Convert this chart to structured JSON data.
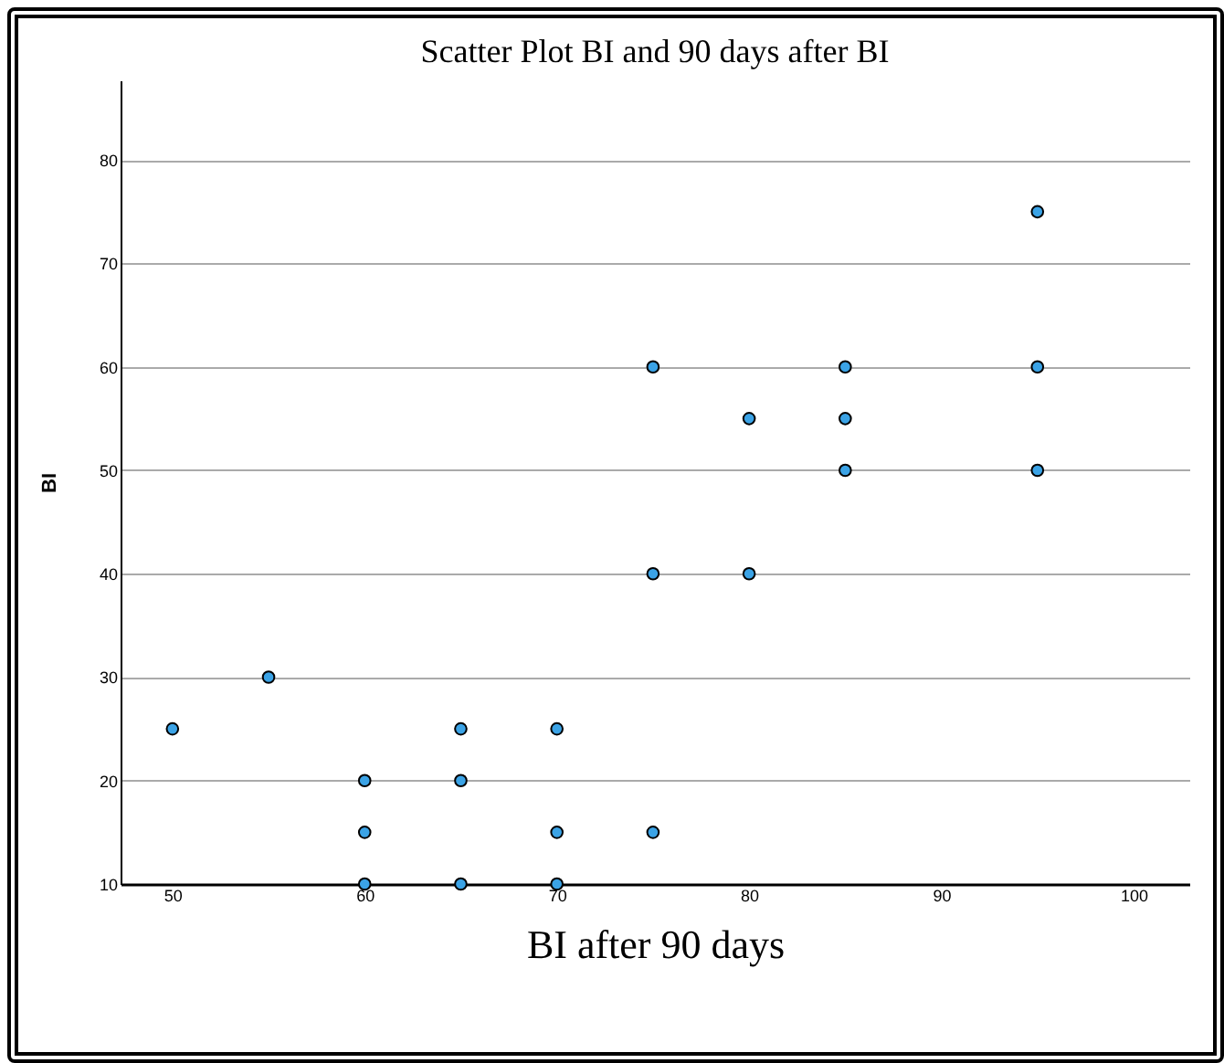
{
  "chart_data": {
    "type": "scatter",
    "title": "Scatter Plot BI and 90 days after BI",
    "xlabel": "BI after 90 days",
    "ylabel": "BI",
    "x": [
      50,
      55,
      60,
      60,
      60,
      65,
      65,
      65,
      70,
      70,
      70,
      75,
      75,
      75,
      80,
      80,
      85,
      85,
      85,
      95,
      95,
      95
    ],
    "values": [
      25,
      30,
      20,
      15,
      10,
      25,
      20,
      10,
      25,
      15,
      10,
      60,
      40,
      15,
      55,
      40,
      60,
      55,
      50,
      75,
      60,
      50
    ],
    "color": "#3ba3e6",
    "marker": "circle",
    "xlim": [
      47.3,
      102.9
    ],
    "xticks": [
      50,
      60,
      70,
      80,
      90,
      100
    ],
    "ylim": [
      10,
      87.7
    ],
    "yticks": [
      10,
      20,
      30,
      40,
      50,
      60,
      70,
      80
    ],
    "grid": "y"
  }
}
